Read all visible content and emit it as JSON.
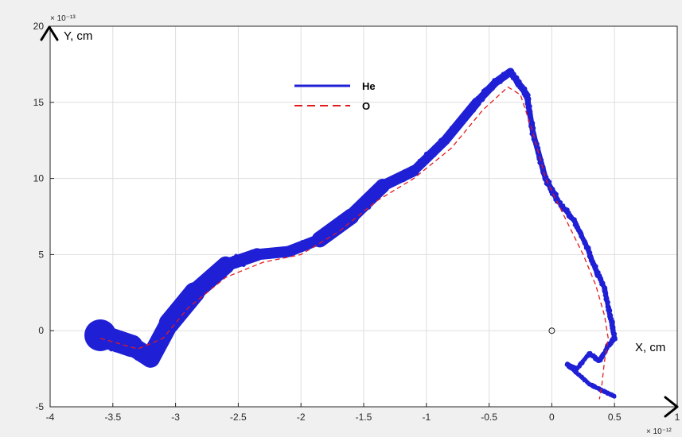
{
  "chart_data": {
    "type": "line",
    "xlabel": "X, cm",
    "ylabel": "Y, cm",
    "x_exponent": "× 10⁻¹²",
    "y_exponent": "× 10⁻¹³",
    "xlim": [
      -4,
      1
    ],
    "ylim": [
      -5,
      20
    ],
    "x_unit_scale": 1e-12,
    "y_unit_scale": 1e-13,
    "xticks": [
      -4,
      -3.5,
      -3,
      -2.5,
      -2,
      -1.5,
      -1,
      -0.5,
      0,
      0.5,
      1
    ],
    "yticks": [
      -5,
      0,
      5,
      10,
      15,
      20
    ],
    "xtick_labels": [
      "-4",
      "-3.5",
      "-3",
      "-2.5",
      "-2",
      "-1.5",
      "-1",
      "-0.5",
      "0",
      "0.5",
      "1"
    ],
    "ytick_labels": [
      "-5",
      "0",
      "5",
      "10",
      "15",
      "20"
    ],
    "grid": true,
    "legend_position": "top-center",
    "marker": {
      "x": 0,
      "y": 0
    },
    "series": [
      {
        "name": "He",
        "color": "#1f1fd6",
        "style": "solid",
        "x": [
          -3.6,
          -3.35,
          -3.2,
          -3.05,
          -2.85,
          -2.6,
          -2.35,
          -2.1,
          -1.85,
          -1.6,
          -1.35,
          -1.1,
          -0.85,
          -0.6,
          -0.45,
          -0.33,
          -0.2,
          -0.15,
          -0.05,
          0.05,
          0.18,
          0.28,
          0.35,
          0.42,
          0.45,
          0.48,
          0.5,
          0.45,
          0.38,
          0.3,
          0.2,
          0.12,
          0.3,
          0.42,
          0.5
        ],
        "y": [
          -0.3,
          -1.0,
          -1.8,
          0.5,
          2.5,
          4.3,
          5.0,
          5.2,
          6.0,
          7.5,
          9.5,
          10.5,
          12.5,
          15.0,
          16.3,
          17.0,
          15.5,
          13.0,
          10.0,
          8.5,
          7.2,
          5.5,
          4.0,
          2.8,
          1.5,
          0.5,
          -0.5,
          -1.0,
          -2.0,
          -1.5,
          -2.5,
          -2.2,
          -3.5,
          -4.0,
          -4.3
        ],
        "thickness": [
          40,
          28,
          24,
          26,
          26,
          22,
          16,
          14,
          20,
          20,
          18,
          14,
          12,
          12,
          10,
          10,
          8,
          7,
          8,
          7,
          6,
          6,
          6,
          5,
          5,
          5,
          5,
          4,
          4,
          3,
          3,
          3,
          3,
          3,
          3
        ]
      },
      {
        "name": "O",
        "color": "#e31a1c",
        "style": "dashed",
        "x": [
          -3.6,
          -3.3,
          -3.1,
          -2.9,
          -2.6,
          -2.3,
          -2.0,
          -1.7,
          -1.4,
          -1.1,
          -0.8,
          -0.55,
          -0.35,
          -0.25,
          -0.15,
          -0.05,
          0.1,
          0.25,
          0.35,
          0.42,
          0.45,
          0.42,
          0.4,
          0.38
        ],
        "y": [
          -0.5,
          -1.2,
          -0.5,
          1.5,
          3.5,
          4.5,
          5.0,
          6.5,
          8.5,
          10.0,
          12.0,
          14.5,
          16.0,
          15.5,
          13.0,
          10.0,
          7.5,
          5.0,
          3.0,
          1.0,
          -0.5,
          -2.0,
          -3.5,
          -4.5
        ]
      }
    ]
  }
}
